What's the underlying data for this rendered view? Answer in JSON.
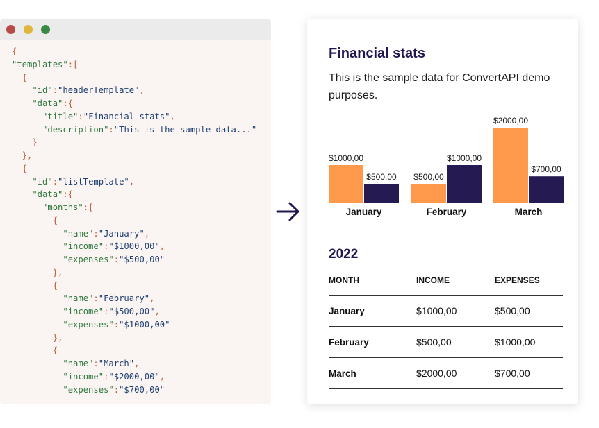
{
  "code_window": {
    "lines": [
      [
        [
          "p",
          "{"
        ]
      ],
      [
        [
          "k",
          "\"templates\""
        ],
        [
          "p",
          ":["
        ]
      ],
      [
        [
          "p",
          "  {"
        ]
      ],
      [
        [
          "k",
          "    \"id\""
        ],
        [
          "p",
          ":"
        ],
        [
          "s",
          "\"headerTemplate\""
        ],
        [
          "p",
          ","
        ]
      ],
      [
        [
          "k",
          "    \"data\""
        ],
        [
          "p",
          ":{"
        ]
      ],
      [
        [
          "k",
          "      \"title\""
        ],
        [
          "p",
          ":"
        ],
        [
          "s",
          "\"Financial stats\""
        ],
        [
          "p",
          ","
        ]
      ],
      [
        [
          "k",
          "      \"description\""
        ],
        [
          "p",
          ":"
        ],
        [
          "s",
          "\"This is the sample data...\""
        ]
      ],
      [
        [
          "p",
          "    }"
        ]
      ],
      [
        [
          "p",
          "  },"
        ]
      ],
      [
        [
          "p",
          "  {"
        ]
      ],
      [
        [
          "k",
          "    \"id\""
        ],
        [
          "p",
          ":"
        ],
        [
          "s",
          "\"listTemplate\""
        ],
        [
          "p",
          ","
        ]
      ],
      [
        [
          "k",
          "    \"data\""
        ],
        [
          "p",
          ":{"
        ]
      ],
      [
        [
          "k",
          "      \"months\""
        ],
        [
          "p",
          ":["
        ]
      ],
      [
        [
          "p",
          "        {"
        ]
      ],
      [
        [
          "k",
          "          \"name\""
        ],
        [
          "p",
          ":"
        ],
        [
          "s",
          "\"January\""
        ],
        [
          "p",
          ","
        ]
      ],
      [
        [
          "k",
          "          \"income\""
        ],
        [
          "p",
          ":"
        ],
        [
          "s",
          "\"$1000,00\""
        ],
        [
          "p",
          ","
        ]
      ],
      [
        [
          "k",
          "          \"expenses\""
        ],
        [
          "p",
          ":"
        ],
        [
          "s",
          "\"$500,00\""
        ]
      ],
      [
        [
          "p",
          "        },"
        ]
      ],
      [
        [
          "p",
          "        {"
        ]
      ],
      [
        [
          "k",
          "          \"name\""
        ],
        [
          "p",
          ":"
        ],
        [
          "s",
          "\"February\""
        ],
        [
          "p",
          ","
        ]
      ],
      [
        [
          "k",
          "          \"income\""
        ],
        [
          "p",
          ":"
        ],
        [
          "s",
          "\"$500,00\""
        ],
        [
          "p",
          ","
        ]
      ],
      [
        [
          "k",
          "          \"expenses\""
        ],
        [
          "p",
          ":"
        ],
        [
          "s",
          "\"$1000,00\""
        ]
      ],
      [
        [
          "p",
          "        },"
        ]
      ],
      [
        [
          "p",
          "        {"
        ]
      ],
      [
        [
          "k",
          "          \"name\""
        ],
        [
          "p",
          ":"
        ],
        [
          "s",
          "\"March\""
        ],
        [
          "p",
          ","
        ]
      ],
      [
        [
          "k",
          "          \"income\""
        ],
        [
          "p",
          ":"
        ],
        [
          "s",
          "\"$2000,00\""
        ],
        [
          "p",
          ","
        ]
      ],
      [
        [
          "k",
          "          \"expenses\""
        ],
        [
          "p",
          ":"
        ],
        [
          "s",
          "\"$700,00\""
        ]
      ]
    ]
  },
  "document": {
    "title": "Financial stats",
    "description": "This is the sample data for ConvertAPI demo purposes.",
    "year": "2022",
    "table": {
      "headers": [
        "MONTH",
        "INCOME",
        "EXPENSES"
      ],
      "rows": [
        [
          "January",
          "$1000,00",
          "$500,00"
        ],
        [
          "February",
          "$500,00",
          "$1000,00"
        ],
        [
          "March",
          "$2000,00",
          "$700,00"
        ]
      ]
    }
  },
  "colors": {
    "income": "#ff9a4d",
    "expenses": "#251a52",
    "heading": "#24174f"
  },
  "icons": {
    "arrow": "arrow-right-icon"
  },
  "chart_data": {
    "type": "bar",
    "categories": [
      "January",
      "February",
      "March"
    ],
    "series": [
      {
        "values": [
          1000,
          500,
          2000
        ],
        "labels": [
          "$1000,00",
          "$500,00",
          "$2000,00"
        ]
      },
      {
        "values": [
          500,
          1000,
          700
        ],
        "labels": [
          "$500,00",
          "$1000,00",
          "$700,00"
        ]
      }
    ],
    "ylim": [
      0,
      2000
    ],
    "grid": false,
    "legend": "none"
  }
}
